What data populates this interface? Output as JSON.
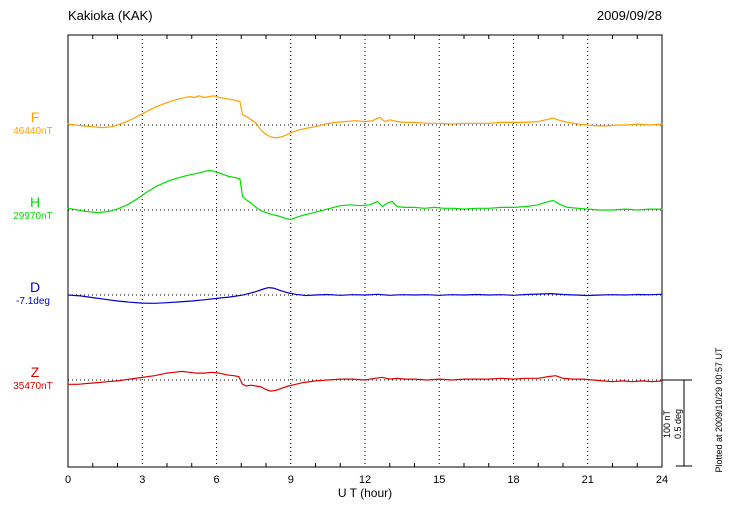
{
  "chart_data": {
    "type": "line",
    "title": "Kakioka (KAK)",
    "date": "2009/09/28",
    "xlabel": "U T (hour)",
    "xlim": [
      0,
      24
    ],
    "x_ticks": [
      0,
      3,
      6,
      9,
      12,
      15,
      18,
      21,
      24
    ],
    "grid": "dotted vertical at 3-hour intervals, dotted horizontal baseline per trace",
    "scale_bar": {
      "nT": "100 nT",
      "deg": "0.5 deg",
      "nT_value": 100,
      "deg_value": 0.5
    },
    "plotted_at": "Plotted at 2009/10/29 00:57 UT",
    "series": [
      {
        "name": "F",
        "unit": "nT",
        "baseline_label": "46440nT",
        "color": "#FFA000",
        "points": [
          [
            0,
            1
          ],
          [
            0.3,
            0
          ],
          [
            0.6,
            -1
          ],
          [
            1,
            -2
          ],
          [
            1.4,
            -3
          ],
          [
            1.8,
            -2
          ],
          [
            2.2,
            2
          ],
          [
            2.6,
            7
          ],
          [
            3,
            13
          ],
          [
            3.4,
            19
          ],
          [
            3.8,
            24
          ],
          [
            4.2,
            28
          ],
          [
            4.6,
            31
          ],
          [
            4.9,
            33
          ],
          [
            5.1,
            32
          ],
          [
            5.3,
            34
          ],
          [
            5.5,
            32
          ],
          [
            5.7,
            33
          ],
          [
            5.9,
            34
          ],
          [
            6.1,
            32
          ],
          [
            6.3,
            31
          ],
          [
            6.5,
            30
          ],
          [
            6.7,
            29
          ],
          [
            6.85,
            28
          ],
          [
            6.95,
            27
          ],
          [
            7.05,
            12
          ],
          [
            7.2,
            10
          ],
          [
            7.4,
            6
          ],
          [
            7.6,
            2
          ],
          [
            7.8,
            -6
          ],
          [
            8,
            -11
          ],
          [
            8.2,
            -14
          ],
          [
            8.4,
            -15
          ],
          [
            8.6,
            -14
          ],
          [
            8.8,
            -12
          ],
          [
            9,
            -9
          ],
          [
            9.3,
            -6
          ],
          [
            9.6,
            -4
          ],
          [
            10,
            -2
          ],
          [
            10.4,
            1
          ],
          [
            10.8,
            3
          ],
          [
            11.2,
            4
          ],
          [
            11.6,
            5
          ],
          [
            12,
            4
          ],
          [
            12.3,
            5
          ],
          [
            12.6,
            9
          ],
          [
            12.8,
            4
          ],
          [
            13,
            6
          ],
          [
            13.3,
            4
          ],
          [
            13.6,
            3
          ],
          [
            14,
            3
          ],
          [
            14.5,
            2
          ],
          [
            15,
            2
          ],
          [
            15.5,
            1
          ],
          [
            16,
            2
          ],
          [
            16.5,
            2
          ],
          [
            17,
            2
          ],
          [
            17.5,
            3
          ],
          [
            18,
            3
          ],
          [
            18.5,
            3
          ],
          [
            19,
            4
          ],
          [
            19.3,
            6
          ],
          [
            19.6,
            8
          ],
          [
            19.9,
            5
          ],
          [
            20.2,
            3
          ],
          [
            20.6,
            1
          ],
          [
            21,
            0
          ],
          [
            21.4,
            -1
          ],
          [
            21.8,
            -1
          ],
          [
            22.2,
            0
          ],
          [
            22.6,
            0
          ],
          [
            23,
            1
          ],
          [
            23.5,
            0
          ],
          [
            24,
            1
          ]
        ]
      },
      {
        "name": "H",
        "unit": "nT",
        "baseline_label": "29970nT",
        "color": "#00DD00",
        "points": [
          [
            0,
            2
          ],
          [
            0.4,
            0
          ],
          [
            0.8,
            -2
          ],
          [
            1.2,
            -3
          ],
          [
            1.6,
            -2
          ],
          [
            2,
            1
          ],
          [
            2.4,
            6
          ],
          [
            2.8,
            13
          ],
          [
            3.2,
            21
          ],
          [
            3.6,
            28
          ],
          [
            4,
            33
          ],
          [
            4.4,
            37
          ],
          [
            4.8,
            40
          ],
          [
            5.1,
            42
          ],
          [
            5.4,
            44
          ],
          [
            5.7,
            46
          ],
          [
            5.9,
            45
          ],
          [
            6.1,
            43
          ],
          [
            6.3,
            41
          ],
          [
            6.5,
            39
          ],
          [
            6.7,
            38
          ],
          [
            6.85,
            37
          ],
          [
            6.95,
            36
          ],
          [
            7.05,
            16
          ],
          [
            7.2,
            12
          ],
          [
            7.4,
            8
          ],
          [
            7.6,
            3
          ],
          [
            7.8,
            -1
          ],
          [
            8,
            -3
          ],
          [
            8.2,
            -5
          ],
          [
            8.5,
            -7
          ],
          [
            8.8,
            -10
          ],
          [
            9,
            -11
          ],
          [
            9.2,
            -9
          ],
          [
            9.5,
            -6
          ],
          [
            9.8,
            -4
          ],
          [
            10.2,
            -1
          ],
          [
            10.6,
            2
          ],
          [
            11,
            5
          ],
          [
            11.4,
            6
          ],
          [
            11.8,
            5
          ],
          [
            12.2,
            6
          ],
          [
            12.5,
            10
          ],
          [
            12.7,
            4
          ],
          [
            12.9,
            8
          ],
          [
            13.1,
            10
          ],
          [
            13.3,
            4
          ],
          [
            13.6,
            3
          ],
          [
            14,
            3
          ],
          [
            14.4,
            2
          ],
          [
            14.8,
            3
          ],
          [
            15.2,
            2
          ],
          [
            15.6,
            2
          ],
          [
            16,
            1
          ],
          [
            16.5,
            2
          ],
          [
            17,
            2
          ],
          [
            17.5,
            3
          ],
          [
            18,
            3
          ],
          [
            18.5,
            4
          ],
          [
            19,
            6
          ],
          [
            19.3,
            9
          ],
          [
            19.6,
            11
          ],
          [
            19.9,
            6
          ],
          [
            20.2,
            3
          ],
          [
            20.6,
            2
          ],
          [
            21,
            1
          ],
          [
            21.5,
            0
          ],
          [
            22,
            0
          ],
          [
            22.5,
            1
          ],
          [
            23,
            0
          ],
          [
            23.5,
            1
          ],
          [
            24,
            1
          ]
        ]
      },
      {
        "name": "D",
        "unit": "deg",
        "baseline_label": "-7.1deg",
        "color": "#0000D0",
        "points": [
          [
            0,
            0
          ],
          [
            0.5,
            -0.005
          ],
          [
            1,
            -0.015
          ],
          [
            1.5,
            -0.025
          ],
          [
            2,
            -0.035
          ],
          [
            2.5,
            -0.042
          ],
          [
            3,
            -0.047
          ],
          [
            3.5,
            -0.048
          ],
          [
            4,
            -0.045
          ],
          [
            4.5,
            -0.04
          ],
          [
            5,
            -0.035
          ],
          [
            5.5,
            -0.028
          ],
          [
            6,
            -0.02
          ],
          [
            6.5,
            -0.012
          ],
          [
            7,
            -0.002
          ],
          [
            7.3,
            0.008
          ],
          [
            7.6,
            0.02
          ],
          [
            7.9,
            0.035
          ],
          [
            8.1,
            0.043
          ],
          [
            8.3,
            0.04
          ],
          [
            8.6,
            0.025
          ],
          [
            8.9,
            0.012
          ],
          [
            9.2,
            0.004
          ],
          [
            9.6,
            -0.003
          ],
          [
            10,
            0
          ],
          [
            10.5,
            0.003
          ],
          [
            11,
            -0.002
          ],
          [
            11.5,
            0.002
          ],
          [
            12,
            0
          ],
          [
            12.5,
            0.004
          ],
          [
            13,
            -0.002
          ],
          [
            13.5,
            0.002
          ],
          [
            14,
            0
          ],
          [
            14.5,
            0.002
          ],
          [
            15,
            -0.002
          ],
          [
            15.5,
            0.002
          ],
          [
            16,
            0
          ],
          [
            16.5,
            0.003
          ],
          [
            17,
            0
          ],
          [
            17.5,
            0.002
          ],
          [
            18,
            -0.002
          ],
          [
            18.5,
            0.003
          ],
          [
            19,
            0.005
          ],
          [
            19.5,
            0.008
          ],
          [
            20,
            0.003
          ],
          [
            20.5,
            0
          ],
          [
            21,
            -0.003
          ],
          [
            21.5,
            0
          ],
          [
            22,
            0.002
          ],
          [
            22.5,
            0
          ],
          [
            23,
            0.003
          ],
          [
            23.5,
            0.002
          ],
          [
            24,
            0.004
          ]
        ]
      },
      {
        "name": "Z",
        "unit": "nT",
        "baseline_label": "35470nT",
        "color": "#E00000",
        "points": [
          [
            0,
            -5
          ],
          [
            0.4,
            -5
          ],
          [
            0.8,
            -4
          ],
          [
            1.2,
            -3
          ],
          [
            1.6,
            -2
          ],
          [
            2,
            -1
          ],
          [
            2.5,
            1
          ],
          [
            3,
            3
          ],
          [
            3.5,
            5
          ],
          [
            4,
            8
          ],
          [
            4.3,
            9
          ],
          [
            4.6,
            10
          ],
          [
            4.9,
            9
          ],
          [
            5.2,
            8
          ],
          [
            5.5,
            8
          ],
          [
            5.8,
            9
          ],
          [
            6.1,
            8
          ],
          [
            6.4,
            6
          ],
          [
            6.7,
            5
          ],
          [
            6.9,
            4
          ],
          [
            7.05,
            -5
          ],
          [
            7.2,
            -7
          ],
          [
            7.4,
            -6
          ],
          [
            7.6,
            -7
          ],
          [
            7.8,
            -8
          ],
          [
            8,
            -11
          ],
          [
            8.2,
            -13
          ],
          [
            8.4,
            -12
          ],
          [
            8.6,
            -10
          ],
          [
            8.9,
            -7
          ],
          [
            9.2,
            -5
          ],
          [
            9.5,
            -3
          ],
          [
            10,
            -1
          ],
          [
            10.5,
            0
          ],
          [
            11,
            1
          ],
          [
            11.5,
            1
          ],
          [
            12,
            0
          ],
          [
            12.4,
            2
          ],
          [
            12.7,
            3
          ],
          [
            13,
            1
          ],
          [
            13.3,
            2
          ],
          [
            13.6,
            1
          ],
          [
            14,
            1
          ],
          [
            14.5,
            0
          ],
          [
            15,
            1
          ],
          [
            15.5,
            0
          ],
          [
            16,
            1
          ],
          [
            16.5,
            1
          ],
          [
            17,
            1
          ],
          [
            17.5,
            2
          ],
          [
            18,
            1
          ],
          [
            18.5,
            2
          ],
          [
            19,
            2
          ],
          [
            19.4,
            4
          ],
          [
            19.7,
            5
          ],
          [
            20,
            2
          ],
          [
            20.4,
            1
          ],
          [
            20.8,
            1
          ],
          [
            21.2,
            0
          ],
          [
            21.6,
            -1
          ],
          [
            22,
            -2
          ],
          [
            22.4,
            -1
          ],
          [
            22.8,
            -2
          ],
          [
            23.2,
            -1
          ],
          [
            23.6,
            -2
          ],
          [
            24,
            -1
          ]
        ]
      }
    ]
  }
}
